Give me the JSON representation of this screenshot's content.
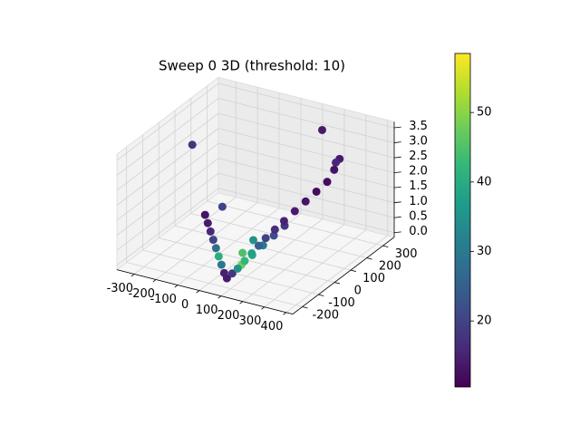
{
  "chart_data": {
    "type": "scatter3d",
    "title": "Sweep 0 3D (threshold: 10)",
    "colormap": "viridis",
    "x": [
      60,
      70,
      80,
      90,
      100,
      110,
      120,
      140,
      160,
      180,
      200,
      220,
      240,
      250,
      260,
      40,
      20,
      0,
      -20,
      -40,
      -60,
      -80,
      -100,
      90,
      110,
      130,
      150,
      170,
      80,
      100,
      -300,
      150,
      250,
      -50
    ],
    "y": [
      -170,
      -150,
      -130,
      -100,
      -70,
      -40,
      -10,
      20,
      50,
      90,
      130,
      170,
      210,
      240,
      260,
      -160,
      -150,
      -140,
      -130,
      -120,
      -110,
      -100,
      -90,
      -120,
      -80,
      -40,
      0,
      40,
      -100,
      -60,
      100,
      300,
      250,
      -50
    ],
    "z": [
      0.0,
      0.1,
      0.2,
      0.35,
      0.5,
      0.65,
      0.8,
      1.0,
      1.2,
      1.4,
      1.6,
      1.8,
      2.0,
      2.3,
      2.6,
      0.1,
      0.3,
      0.5,
      0.7,
      0.9,
      1.1,
      1.3,
      1.5,
      0.3,
      0.5,
      0.7,
      0.9,
      1.1,
      0.6,
      0.9,
      2.7,
      3.2,
      2.5,
      1.7
    ],
    "c": [
      14,
      18,
      35,
      42,
      38,
      25,
      20,
      17,
      15,
      14,
      13,
      12,
      12,
      13,
      14,
      15,
      30,
      40,
      28,
      20,
      16,
      14,
      13,
      48,
      40,
      30,
      22,
      18,
      45,
      35,
      18,
      14,
      16,
      20
    ],
    "xlim": [
      -380,
      430
    ],
    "ylim": [
      -260,
      370
    ],
    "zlim": [
      -0.15,
      3.7
    ],
    "clim": [
      10.5,
      58.5
    ],
    "xticks": [
      -300,
      -200,
      -100,
      0,
      100,
      200,
      300,
      400
    ],
    "yticks": [
      -200,
      -100,
      0,
      100,
      200,
      300
    ],
    "zticks": [
      {
        "value": 0,
        "label": "0.0"
      },
      0.5,
      {
        "value": 1,
        "label": "1.0"
      },
      1.5,
      {
        "value": 2,
        "label": "2.0"
      },
      2.5,
      {
        "value": 3,
        "label": "3.0"
      },
      3.5
    ],
    "cticks": [
      20,
      30,
      40,
      50
    ],
    "grid": true
  }
}
